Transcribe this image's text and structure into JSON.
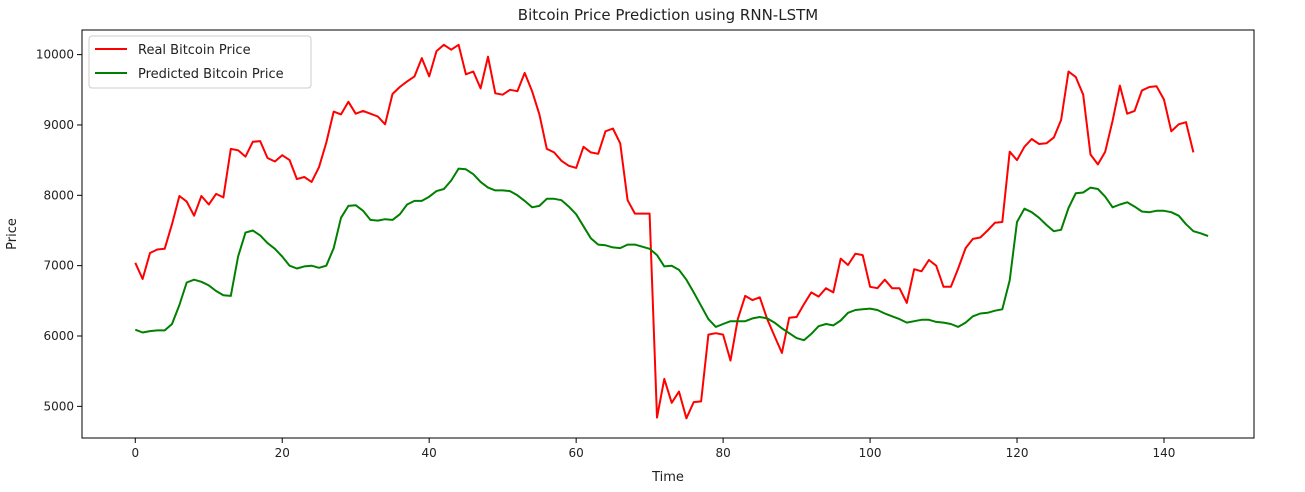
{
  "chart_data": {
    "type": "line",
    "title": "Bitcoin Price Prediction using RNN-LSTM",
    "xlabel": "Time",
    "ylabel": "Price",
    "xlim": [
      -7.25,
      152.25
    ],
    "ylim": [
      4550,
      10350
    ],
    "xticks": [
      0,
      20,
      40,
      60,
      80,
      100,
      120,
      140
    ],
    "yticks": [
      5000,
      6000,
      7000,
      8000,
      9000,
      10000
    ],
    "grid": false,
    "legend_position": "top-left",
    "series": [
      {
        "name": "Real Bitcoin Price",
        "color": "#ff0000",
        "values": [
          7040,
          6810,
          7180,
          7230,
          7240,
          7590,
          7990,
          7910,
          7710,
          7990,
          7870,
          8020,
          7970,
          8660,
          8640,
          8550,
          8760,
          8770,
          8530,
          8480,
          8570,
          8500,
          8230,
          8260,
          8190,
          8400,
          8750,
          9190,
          9150,
          9330,
          9160,
          9200,
          9160,
          9120,
          9010,
          9440,
          9540,
          9620,
          9690,
          9950,
          9690,
          10050,
          10140,
          10070,
          10140,
          9720,
          9760,
          9520,
          9970,
          9450,
          9430,
          9500,
          9480,
          9740,
          9480,
          9150,
          8660,
          8610,
          8490,
          8420,
          8390,
          8690,
          8610,
          8590,
          8910,
          8950,
          8740,
          7930,
          7740,
          7740,
          7740,
          4840,
          5390,
          5050,
          5210,
          4830,
          5060,
          5070,
          6020,
          6040,
          6020,
          5650,
          6240,
          6570,
          6510,
          6550,
          6240,
          6000,
          5760,
          6260,
          6270,
          6450,
          6620,
          6560,
          6680,
          6620,
          7100,
          7010,
          7170,
          7150,
          6700,
          6680,
          6800,
          6680,
          6680,
          6470,
          6950,
          6920,
          7080,
          7000,
          6700,
          6700,
          6960,
          7250,
          7380,
          7400,
          7500,
          7610,
          7620,
          8620,
          8500,
          8690,
          8800,
          8730,
          8740,
          8820,
          9070,
          9760,
          9680,
          9430,
          8580,
          8440,
          8620,
          9060,
          9560,
          9160,
          9200,
          9490,
          9540,
          9550,
          9360,
          8910,
          9010,
          9040,
          8610
        ]
      },
      {
        "name": "Predicted Bitcoin Price",
        "color": "#008000",
        "values": [
          6090,
          6050,
          6070,
          6080,
          6080,
          6170,
          6440,
          6760,
          6800,
          6770,
          6720,
          6640,
          6580,
          6570,
          7130,
          7470,
          7500,
          7430,
          7320,
          7240,
          7130,
          7000,
          6960,
          6990,
          7000,
          6970,
          7000,
          7250,
          7680,
          7850,
          7860,
          7780,
          7650,
          7640,
          7660,
          7650,
          7730,
          7870,
          7920,
          7920,
          7980,
          8060,
          8090,
          8210,
          8380,
          8370,
          8300,
          8190,
          8110,
          8070,
          8070,
          8060,
          8000,
          7920,
          7830,
          7850,
          7950,
          7950,
          7930,
          7840,
          7730,
          7560,
          7390,
          7300,
          7290,
          7260,
          7250,
          7300,
          7300,
          7270,
          7240,
          7150,
          6990,
          7000,
          6940,
          6800,
          6620,
          6430,
          6240,
          6130,
          6170,
          6210,
          6210,
          6210,
          6250,
          6270,
          6250,
          6190,
          6110,
          6040,
          5970,
          5940,
          6030,
          6140,
          6170,
          6150,
          6220,
          6330,
          6370,
          6380,
          6390,
          6370,
          6320,
          6280,
          6240,
          6190,
          6210,
          6230,
          6230,
          6200,
          6190,
          6170,
          6130,
          6190,
          6280,
          6320,
          6330,
          6360,
          6380,
          6790,
          7620,
          7810,
          7760,
          7680,
          7580,
          7490,
          7510,
          7820,
          8030,
          8040,
          8110,
          8090,
          7980,
          7830,
          7870,
          7900,
          7840,
          7770,
          7760,
          7780,
          7780,
          7760,
          7710,
          7590,
          7490,
          7460,
          7420
        ]
      }
    ]
  }
}
